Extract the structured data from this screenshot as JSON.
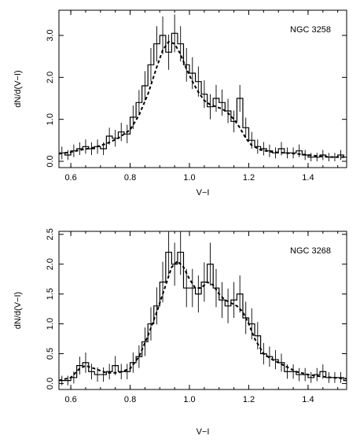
{
  "chart_data": [
    {
      "type": "bar",
      "title": "",
      "annotation": "NGC 3258",
      "xlabel": "V−I",
      "ylabel": "dN/d(V−I)",
      "xlim": [
        0.56,
        1.53
      ],
      "ylim": [
        -0.15,
        3.6
      ],
      "xticks": [
        "0.6",
        "0.8",
        "1.0",
        "1.2",
        "1.4"
      ],
      "yticks": [
        "0.0",
        "1.0",
        "2.0",
        "3.0"
      ],
      "bin_width": 0.02,
      "bins_x": [
        0.57,
        0.59,
        0.61,
        0.63,
        0.65,
        0.67,
        0.69,
        0.71,
        0.73,
        0.75,
        0.77,
        0.79,
        0.81,
        0.83,
        0.85,
        0.87,
        0.89,
        0.91,
        0.93,
        0.95,
        0.97,
        0.99,
        1.01,
        1.03,
        1.05,
        1.07,
        1.09,
        1.11,
        1.13,
        1.15,
        1.17,
        1.19,
        1.21,
        1.23,
        1.25,
        1.27,
        1.29,
        1.31,
        1.33,
        1.35,
        1.37,
        1.39,
        1.41,
        1.43,
        1.45,
        1.47,
        1.49,
        1.51,
        1.53
      ],
      "values": [
        0.2,
        0.15,
        0.25,
        0.3,
        0.35,
        0.3,
        0.35,
        0.3,
        0.6,
        0.55,
        0.7,
        0.65,
        1.05,
        1.4,
        1.8,
        2.3,
        2.8,
        3.0,
        2.6,
        3.05,
        2.8,
        2.3,
        2.1,
        1.9,
        1.6,
        1.3,
        1.5,
        1.4,
        1.2,
        0.95,
        1.5,
        0.8,
        0.5,
        0.35,
        0.3,
        0.25,
        0.2,
        0.3,
        0.2,
        0.2,
        0.25,
        0.15,
        0.1,
        0.1,
        0.15,
        0.1,
        0.1,
        0.15,
        0.1
      ],
      "errors": [
        0.15,
        0.12,
        0.15,
        0.15,
        0.17,
        0.15,
        0.17,
        0.15,
        0.2,
        0.2,
        0.22,
        0.22,
        0.28,
        0.3,
        0.35,
        0.4,
        0.42,
        0.45,
        0.42,
        0.45,
        0.42,
        0.4,
        0.38,
        0.36,
        0.33,
        0.3,
        0.32,
        0.31,
        0.29,
        0.26,
        0.32,
        0.24,
        0.2,
        0.17,
        0.16,
        0.15,
        0.13,
        0.16,
        0.13,
        0.13,
        0.15,
        0.12,
        0.1,
        0.1,
        0.12,
        0.1,
        0.1,
        0.12,
        0.1
      ],
      "smooth_x": [
        0.56,
        0.6,
        0.64,
        0.68,
        0.72,
        0.76,
        0.8,
        0.83,
        0.86,
        0.89,
        0.91,
        0.93,
        0.95,
        0.97,
        0.99,
        1.01,
        1.03,
        1.05,
        1.07,
        1.09,
        1.11,
        1.13,
        1.15,
        1.17,
        1.19,
        1.21,
        1.24,
        1.28,
        1.32,
        1.36,
        1.4,
        1.44,
        1.48,
        1.53
      ],
      "smooth_y": [
        0.18,
        0.22,
        0.28,
        0.33,
        0.42,
        0.55,
        0.75,
        1.1,
        1.6,
        2.25,
        2.65,
        2.85,
        2.8,
        2.55,
        2.2,
        1.9,
        1.65,
        1.45,
        1.35,
        1.3,
        1.25,
        1.15,
        1.0,
        0.8,
        0.55,
        0.38,
        0.27,
        0.22,
        0.2,
        0.18,
        0.15,
        0.12,
        0.1,
        0.1
      ]
    },
    {
      "type": "bar",
      "title": "",
      "annotation": "NGC 3268",
      "xlabel": "V−I",
      "ylabel": "dN/d(V−I)",
      "xlim": [
        0.56,
        1.53
      ],
      "ylim": [
        -0.1,
        2.55
      ],
      "xticks": [
        "0.6",
        "0.8",
        "1.0",
        "1.2",
        "1.4"
      ],
      "yticks": [
        "0.0",
        "0.5",
        "1.0",
        "1.5",
        "2.0",
        "2.5"
      ],
      "bin_width": 0.02,
      "bins_x": [
        0.57,
        0.59,
        0.61,
        0.63,
        0.65,
        0.67,
        0.69,
        0.71,
        0.73,
        0.75,
        0.77,
        0.79,
        0.81,
        0.83,
        0.85,
        0.87,
        0.89,
        0.91,
        0.93,
        0.95,
        0.97,
        0.99,
        1.01,
        1.03,
        1.05,
        1.07,
        1.09,
        1.11,
        1.13,
        1.15,
        1.17,
        1.19,
        1.21,
        1.23,
        1.25,
        1.27,
        1.29,
        1.31,
        1.33,
        1.35,
        1.37,
        1.39,
        1.41,
        1.43,
        1.45,
        1.47,
        1.49,
        1.51,
        1.53
      ],
      "values": [
        0.05,
        0.05,
        0.1,
        0.3,
        0.35,
        0.2,
        0.15,
        0.15,
        0.2,
        0.3,
        0.2,
        0.2,
        0.35,
        0.45,
        0.7,
        1.0,
        1.3,
        1.7,
        2.2,
        2.0,
        2.2,
        1.6,
        1.6,
        1.5,
        1.7,
        2.0,
        1.6,
        1.4,
        1.3,
        1.4,
        1.5,
        1.1,
        1.0,
        0.8,
        0.5,
        0.45,
        0.4,
        0.35,
        0.2,
        0.2,
        0.15,
        0.15,
        0.1,
        0.15,
        0.2,
        0.1,
        0.1,
        0.1,
        0.05
      ],
      "errors": [
        0.08,
        0.08,
        0.1,
        0.15,
        0.17,
        0.13,
        0.12,
        0.12,
        0.13,
        0.16,
        0.13,
        0.13,
        0.17,
        0.19,
        0.24,
        0.28,
        0.31,
        0.34,
        0.38,
        0.36,
        0.38,
        0.32,
        0.32,
        0.31,
        0.33,
        0.36,
        0.32,
        0.3,
        0.29,
        0.3,
        0.31,
        0.27,
        0.26,
        0.23,
        0.18,
        0.17,
        0.16,
        0.15,
        0.12,
        0.12,
        0.11,
        0.11,
        0.09,
        0.11,
        0.12,
        0.09,
        0.09,
        0.09,
        0.08
      ],
      "smooth_x": [
        0.56,
        0.6,
        0.63,
        0.65,
        0.68,
        0.72,
        0.76,
        0.8,
        0.83,
        0.86,
        0.89,
        0.92,
        0.94,
        0.96,
        0.98,
        1.0,
        1.02,
        1.04,
        1.06,
        1.08,
        1.1,
        1.12,
        1.14,
        1.16,
        1.18,
        1.2,
        1.22,
        1.25,
        1.28,
        1.32,
        1.36,
        1.4,
        1.44,
        1.48,
        1.53
      ],
      "smooth_y": [
        0.05,
        0.1,
        0.25,
        0.3,
        0.25,
        0.18,
        0.18,
        0.25,
        0.45,
        0.8,
        1.2,
        1.65,
        1.95,
        2.05,
        1.95,
        1.75,
        1.6,
        1.6,
        1.7,
        1.65,
        1.5,
        1.4,
        1.35,
        1.3,
        1.2,
        1.0,
        0.75,
        0.5,
        0.4,
        0.3,
        0.2,
        0.15,
        0.12,
        0.1,
        0.08
      ]
    }
  ]
}
